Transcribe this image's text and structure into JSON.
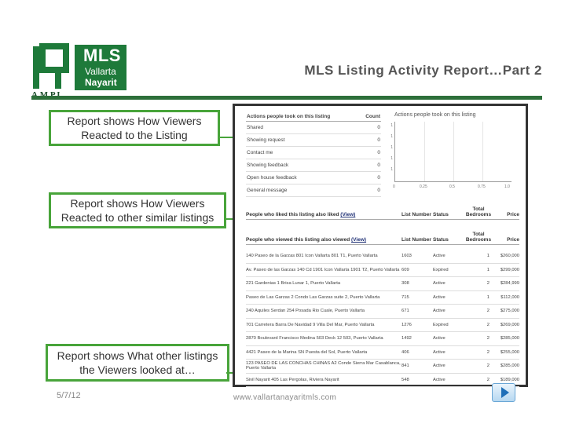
{
  "header": {
    "logo": {
      "mls": "MLS",
      "vallarta": "Vallarta",
      "nayarit": "Nayarit",
      "ampi": "A.M.P.I."
    },
    "title": "MLS Listing Activity Report…Part 2"
  },
  "callouts": [
    {
      "line1": "Report shows How Viewers",
      "line2": "Reacted to the Listing"
    },
    {
      "line1": "Report shows How Viewers",
      "line2": "Reacted to other similar listings"
    },
    {
      "line1": "Report shows What other listings",
      "line2": "the Viewers looked at…"
    }
  ],
  "actions": {
    "header_label": "Actions people took on this listing",
    "header_count": "Count",
    "rows": [
      {
        "label": "Shared",
        "count": "0"
      },
      {
        "label": "Showing request",
        "count": "0"
      },
      {
        "label": "Contact me",
        "count": "0"
      },
      {
        "label": "Showing feedback",
        "count": "0"
      },
      {
        "label": "Open house feedback",
        "count": "0"
      },
      {
        "label": "General message",
        "count": "0"
      }
    ]
  },
  "mini_chart": {
    "title": "Actions people took on this listing",
    "x_ticks": [
      "0",
      "0.25",
      "0.5",
      "0.75",
      "1.0"
    ],
    "y_labels": [
      "1",
      "1",
      "1",
      "1",
      "1"
    ]
  },
  "liked": {
    "title": "People who liked this listing also liked",
    "view_link": "(View)",
    "col_num": "List Number",
    "col_status": "Status",
    "col_bed": "Total Bedrooms",
    "col_price": "Price"
  },
  "viewed": {
    "title": "People who viewed this listing also viewed",
    "view_link": "(View)",
    "col_num": "List Number",
    "col_status": "Status",
    "col_bed": "Total Bedrooms",
    "col_price": "Price",
    "rows": [
      {
        "addr": "140 Paseo de la Garzas 801 Icon Vallarta 801 T1, Puerto Vallarta",
        "num": "1603",
        "status": "Active",
        "bed": "1",
        "price": "$260,000"
      },
      {
        "addr": "Av. Paseo de las Garzas 140 Cd 1901 Icon Vallarta 1901 T2, Puerto Vallarta",
        "num": "609",
        "status": "Expired",
        "bed": "1",
        "price": "$299,000"
      },
      {
        "addr": "221 Gardenias 1 Brisa Lunar 1, Puerto Vallarta",
        "num": "308",
        "status": "Active",
        "bed": "2",
        "price": "$284,999"
      },
      {
        "addr": "Paseo de Las Garzas 2 Condo Las Garzas suite 2, Puerto Vallarta",
        "num": "715",
        "status": "Active",
        "bed": "1",
        "price": "$112,000"
      },
      {
        "addr": "240 Aquiles Serdan 254 Posada Rio Cuale, Puerto Vallarta",
        "num": "671",
        "status": "Active",
        "bed": "2",
        "price": "$275,000"
      },
      {
        "addr": "701 Carretera Barra De Navidad 9 Villa Del Mar, Puerto Vallarta",
        "num": "1276",
        "status": "Expired",
        "bed": "2",
        "price": "$269,000"
      },
      {
        "addr": "2870 Boulevard Francisco Medina 503 Deck 12 503, Puerto Vallarta",
        "num": "1492",
        "status": "Active",
        "bed": "2",
        "price": "$285,000"
      },
      {
        "addr": "4421 Paseo de la Marina SN Puesta del Sol, Puerto Vallarta",
        "num": "406",
        "status": "Active",
        "bed": "2",
        "price": "$255,000"
      },
      {
        "addr": "123 PASEO DE LAS CONCHAS CHINAS A2 Conde Sierra Mar Casablanca, Puerto Vallarta",
        "num": "841",
        "status": "Active",
        "bed": "2",
        "price": "$285,000"
      },
      {
        "addr": "Sivil Nayarit 405 Las Pergolas, Riviera Nayarit",
        "num": "548",
        "status": "Active",
        "bed": "2",
        "price": "$189,000"
      }
    ]
  },
  "footer": {
    "date": "5/7/12",
    "url": "www.vallartanayaritmls.com"
  },
  "colors": {
    "accent_green": "#48a43a",
    "brand_green": "#1e7a3a",
    "nav_blue": "#1f6fb8"
  }
}
